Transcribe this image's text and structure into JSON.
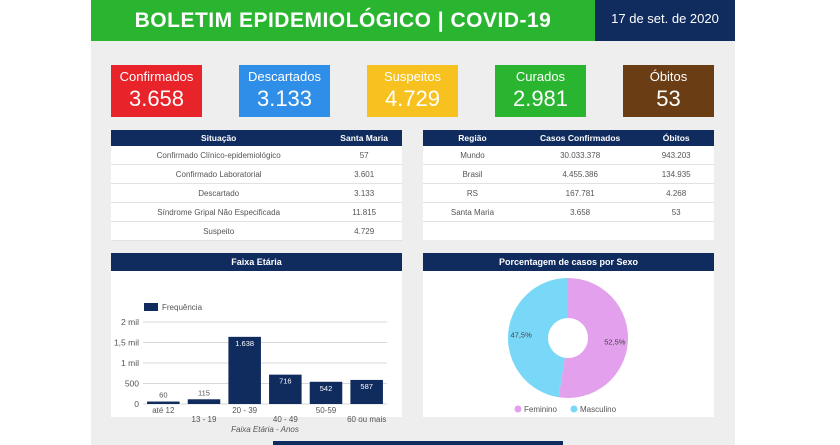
{
  "header": {
    "title": "BOLETIM EPIDEMIOLÓGICO | COVID-19",
    "date": "17 de set. de 2020"
  },
  "cards": [
    {
      "label": "Confirmados",
      "value": "3.658",
      "color": "#e8232a"
    },
    {
      "label": "Descartados",
      "value": "3.133",
      "color": "#2f8fe8"
    },
    {
      "label": "Suspeitos",
      "value": "4.729",
      "color": "#f7c11f"
    },
    {
      "label": "Curados",
      "value": "2.981",
      "color": "#2ab531"
    },
    {
      "label": "Óbitos",
      "value": "53",
      "color": "#6b3d14"
    }
  ],
  "situacao_table": {
    "headers": [
      "Situação",
      "Santa Maria"
    ],
    "rows": [
      [
        "Confirmado Clínico-epidemiológico",
        "57"
      ],
      [
        "Confirmado Laboratorial",
        "3.601"
      ],
      [
        "Descartado",
        "3.133"
      ],
      [
        "Síndrome Gripal Não Especificada",
        "11.815"
      ],
      [
        "Suspeito",
        "4.729"
      ]
    ]
  },
  "regiao_table": {
    "headers": [
      "Região",
      "Casos Confirmados",
      "Óbitos"
    ],
    "rows": [
      [
        "Mundo",
        "30.033.378",
        "943.203"
      ],
      [
        "Brasil",
        "4.455.386",
        "134.935"
      ],
      [
        "RS",
        "167.781",
        "4.268"
      ],
      [
        "Santa Maria",
        "3.658",
        "53"
      ]
    ]
  },
  "faixa_panel": {
    "title": "Faixa Etária"
  },
  "sexo_panel": {
    "title": "Porcentagem de casos por Sexo"
  },
  "chart_data": [
    {
      "type": "bar",
      "categories": [
        "até 12",
        "13 - 19",
        "20 - 39",
        "40 - 49",
        "50-59",
        "60 ou mais"
      ],
      "values": [
        60,
        115,
        1638,
        716,
        542,
        587
      ],
      "value_labels": [
        "60",
        "115",
        "1.638",
        "716",
        "542",
        "587"
      ],
      "series": [
        {
          "name": "Frequência",
          "values": [
            60,
            115,
            1638,
            716,
            542,
            587
          ]
        }
      ],
      "xlabel": "Faixa Etária - Anos",
      "ylabel": "",
      "ylim": [
        0,
        2000
      ],
      "yticks": [
        0,
        500,
        1000,
        1500,
        2000
      ],
      "ytick_labels": [
        "0",
        "500",
        "1 mil",
        "1,5 mil",
        "2 mil"
      ],
      "grid": true,
      "legend": "top-left",
      "color": "#102b5e"
    },
    {
      "type": "pie",
      "donut": true,
      "labels": [
        "Feminino",
        "Masculino"
      ],
      "values": [
        52.5,
        47.5
      ],
      "value_labels": [
        "52,5%",
        "47,5%"
      ],
      "colors": [
        "#e3a0ec",
        "#79d8f8"
      ],
      "legend": "bottom"
    }
  ]
}
